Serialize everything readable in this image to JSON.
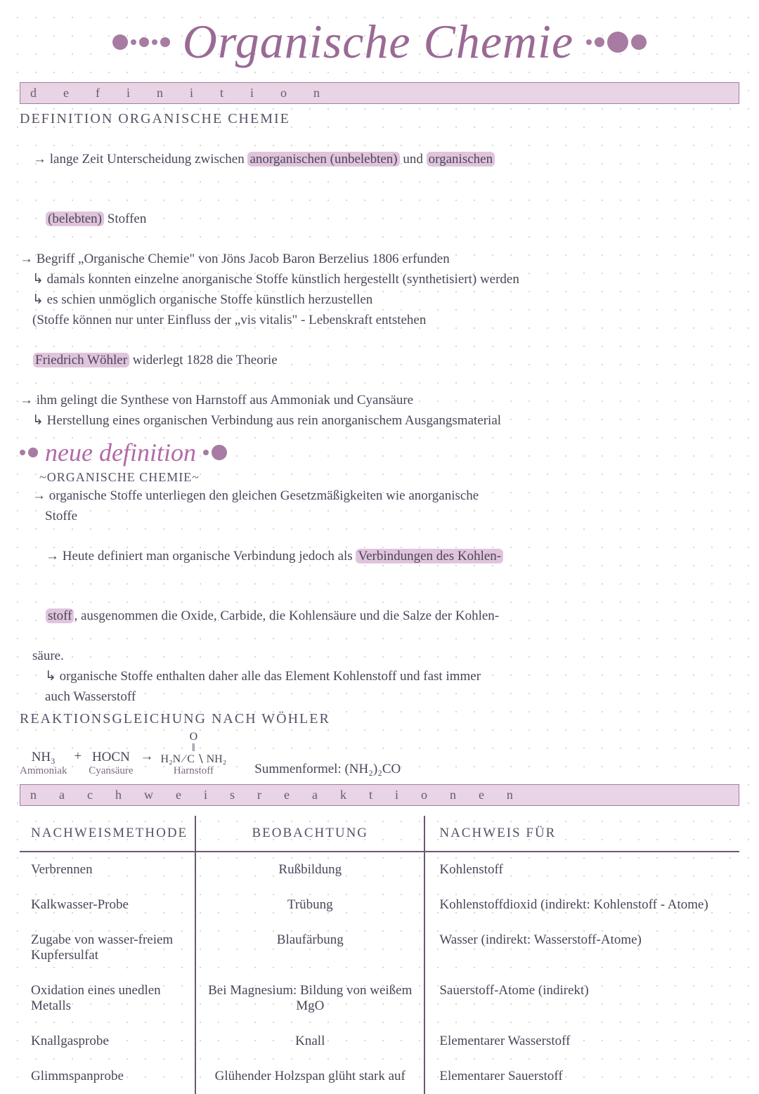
{
  "title": "Organische Chemie",
  "colors": {
    "accent": "#a77ba2",
    "highlight": "#e0c4dc",
    "barFill": "#e8d4e5",
    "barBorder": "#a77ba2",
    "text": "#4a4658",
    "heading": "#5a5066",
    "subheading": "#b26aa8",
    "tableBorder": "#6a5a70",
    "dotGrid": "#c8c8d0"
  },
  "sectionBars": {
    "definition": "definition",
    "nachweis": "nachweisreaktionen"
  },
  "headings": {
    "def": "DEFINITION ORGANISCHE CHEMIE",
    "orgChem": "~ORGANISCHE CHEMIE~",
    "reaktion": "REAKTIONSGLEICHUNG NACH WÖHLER"
  },
  "subheading": "neue definition",
  "lines": {
    "l1a": "→ lange Zeit Unterscheidung zwischen ",
    "l1b": "anorganischen (unbelebten)",
    "l1c": " und ",
    "l1d": "organischen",
    "l2a": "(belebten)",
    "l2b": " Stoffen",
    "l3": "→ Begriff „Organische Chemie\" von Jöns Jacob Baron Berzelius 1806 erfunden",
    "l4": "↳ damals konnten einzelne anorganische Stoffe künstlich hergestellt (synthetisiert) werden",
    "l5": "↳ es schien unmöglich organische Stoffe künstlich herzustellen",
    "l6": "(Stoffe können nur unter Einfluss der „vis vitalis\" - Lebenskraft entstehen",
    "l7a": "Friedrich Wöhler",
    "l7b": " widerlegt 1828 die Theorie",
    "l8": "→ ihm gelingt die Synthese von Harnstoff aus Ammoniak und Cyansäure",
    "l9": "↳ Herstellung eines organischen Verbindung aus rein anorganischem Ausgangsmaterial",
    "n1": "→ organische Stoffe unterliegen den gleichen Gesetzmäßigkeiten wie anorganische",
    "n2": "Stoffe",
    "n3a": "→ Heute definiert man organische Verbindung jedoch als ",
    "n3b": "Verbindungen des Kohlen-",
    "n4a": "stoff",
    "n4b": ", ausgenommen die Oxide, Carbide, die Kohlensäure und die Salze der Kohlen-",
    "n5": "säure.",
    "n6": "↳ organische Stoffe enthalten daher alle das Element Kohlenstoff und fast immer",
    "n7": "auch Wasserstoff"
  },
  "reaction": {
    "reactant1_formula": "NH₃",
    "reactant1_label": "Ammoniak",
    "plus": "+",
    "reactant2_formula": "HOCN",
    "reactant2_label": "Cyansäure",
    "arrow": "→",
    "struct_top": "O",
    "struct_mid": "‖",
    "struct_left": "H₂N",
    "struct_c": "C",
    "struct_right": "NH₂",
    "product_label": "Harnstoff",
    "sumformel_label": "Summenformel: ",
    "sumformel": "(NH₂)₂CO"
  },
  "table": {
    "headers": [
      "NACHWEISMETHODE",
      "BEOBACHTUNG",
      "NACHWEIS FÜR"
    ],
    "rows": [
      [
        "Verbrennen",
        "Rußbildung",
        "Kohlenstoff"
      ],
      [
        "Kalkwasser-Probe",
        "Trübung",
        "Kohlenstoffdioxid (indirekt: Kohlenstoff - Atome)"
      ],
      [
        "Zugabe von wasser-freiem Kupfersulfat",
        "Blaufärbung",
        "Wasser (indirekt: Wasserstoff-Atome)"
      ],
      [
        "Oxidation eines unedlen Metalls",
        "Bei Magnesium: Bildung von weißem MgO",
        "Sauerstoff-Atome (indirekt)"
      ],
      [
        "Knallgasprobe",
        "Knall",
        "Elementarer Wasserstoff"
      ],
      [
        "Glimmspanprobe",
        "Glühender Holzspan glüht stark auf",
        "Elementarer Sauerstoff"
      ]
    ]
  }
}
